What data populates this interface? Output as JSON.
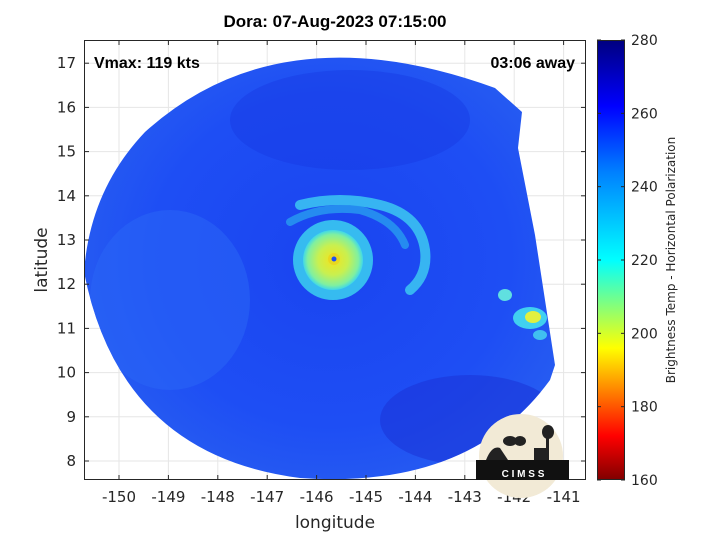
{
  "title": "Dora: 07-Aug-2023 07:15:00",
  "vmax_label": "Vmax: 119 kts",
  "away_label": "03:06 away",
  "xlabel": "longitude",
  "ylabel": "latitude",
  "xticks": [
    "-150",
    "-149",
    "-148",
    "-147",
    "-146",
    "-145",
    "-144",
    "-143",
    "-142",
    "-141"
  ],
  "yticks": [
    "8",
    "9",
    "10",
    "11",
    "12",
    "13",
    "14",
    "15",
    "16",
    "17"
  ],
  "colorbar": {
    "label": "Brightness Temp - Horizontal Polarization",
    "ticks": [
      "160",
      "180",
      "200",
      "220",
      "240",
      "260",
      "280"
    ],
    "min": 160,
    "max": 280
  },
  "logo_text": "C I M S S",
  "storm_center": {
    "lon": -145.6,
    "lat": 12.55
  },
  "colors": {
    "background_scene": "#1f4cf5",
    "eyewall": "#b8f060",
    "eye": "#f0e020",
    "band": "#30c8f0"
  }
}
